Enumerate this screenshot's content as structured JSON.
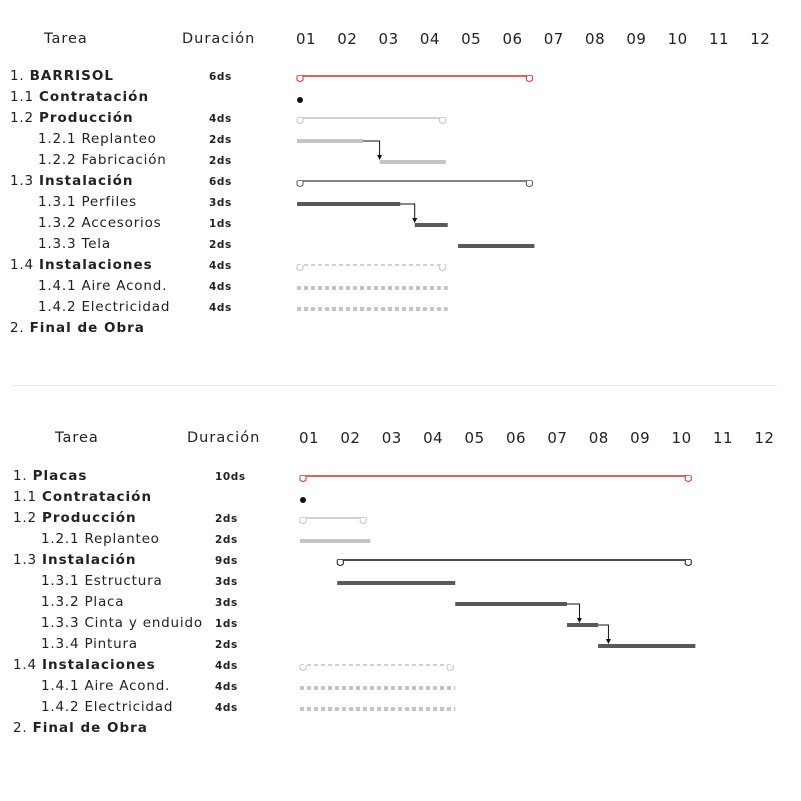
{
  "colors": {
    "red": "#e02a2a",
    "light_gray": "#c4c4c4",
    "dark_gray": "#595959",
    "text": "#222222"
  },
  "charts": [
    {
      "header": {
        "task": "Tarea",
        "duration": "Duración"
      },
      "time_ticks": [
        "01",
        "02",
        "03",
        "04",
        "05",
        "06",
        "07",
        "08",
        "09",
        "10",
        "11",
        "12"
      ],
      "tasks": [
        {
          "num": "1.",
          "name": "BARRISOL",
          "bold": true,
          "indent": 0,
          "dur": "6ds"
        },
        {
          "num": "1.1",
          "name": "Contratación",
          "bold": true,
          "indent": 0,
          "dur": ""
        },
        {
          "num": "1.2",
          "name": "Producción",
          "bold": true,
          "indent": 0,
          "dur": "4ds"
        },
        {
          "num": "1.2.1",
          "name": "Replanteo",
          "bold": false,
          "indent": 1,
          "dur": "2ds"
        },
        {
          "num": "1.2.2",
          "name": "Fabricación",
          "bold": false,
          "indent": 1,
          "dur": "2ds"
        },
        {
          "num": "1.3",
          "name": "Instalación",
          "bold": true,
          "indent": 0,
          "dur": "6ds"
        },
        {
          "num": "1.3.1",
          "name": "Perfiles",
          "bold": false,
          "indent": 1,
          "dur": "3ds"
        },
        {
          "num": "1.3.2",
          "name": "Accesorios",
          "bold": false,
          "indent": 1,
          "dur": "1ds"
        },
        {
          "num": "1.3.3",
          "name": "Tela",
          "bold": false,
          "indent": 1,
          "dur": "2ds"
        },
        {
          "num": "1.4",
          "name": "Instalaciones",
          "bold": true,
          "indent": 0,
          "dur": "4ds"
        },
        {
          "num": "1.4.1",
          "name": "Aire Acond.",
          "bold": false,
          "indent": 1,
          "dur": "4ds"
        },
        {
          "num": "1.4.2",
          "name": "Electricidad",
          "bold": false,
          "indent": 1,
          "dur": "4ds"
        },
        {
          "num": "2.",
          "name": "Final de Obra",
          "bold": true,
          "indent": 0,
          "dur": ""
        }
      ],
      "bars": [
        {
          "row": 0,
          "start": 0.0,
          "end": 5.7,
          "style": "summary",
          "color": "red"
        },
        {
          "row": 1,
          "start": 0.0,
          "end": 0.0,
          "style": "milestone",
          "color": "black"
        },
        {
          "row": 2,
          "start": 0.0,
          "end": 3.6,
          "style": "summary",
          "color": "light_gray"
        },
        {
          "row": 3,
          "start": 0.0,
          "end": 1.6,
          "style": "bar",
          "color": "light_gray"
        },
        {
          "row": 4,
          "start": 2.0,
          "end": 3.6,
          "style": "bar",
          "color": "light_gray"
        },
        {
          "row": 5,
          "start": 0.0,
          "end": 5.7,
          "style": "summary",
          "color": "dark_gray"
        },
        {
          "row": 6,
          "start": 0.0,
          "end": 2.5,
          "style": "bar",
          "color": "dark_gray"
        },
        {
          "row": 7,
          "start": 2.85,
          "end": 3.65,
          "style": "bar",
          "color": "dark_gray"
        },
        {
          "row": 8,
          "start": 3.9,
          "end": 5.75,
          "style": "bar",
          "color": "dark_gray"
        },
        {
          "row": 9,
          "start": 0.0,
          "end": 3.6,
          "style": "summary_dashed",
          "color": "light_gray"
        },
        {
          "row": 10,
          "start": 0.0,
          "end": 3.65,
          "style": "dashed",
          "color": "light_gray"
        },
        {
          "row": 11,
          "start": 0.0,
          "end": 3.65,
          "style": "dashed",
          "color": "light_gray"
        }
      ],
      "links": [
        {
          "from_row": 3,
          "at": 1.6,
          "to_row": 4,
          "to": 2.0
        },
        {
          "from_row": 6,
          "at": 2.5,
          "to_row": 7,
          "to": 2.85
        }
      ]
    },
    {
      "header": {
        "task": "Tarea",
        "duration": "Duración"
      },
      "time_ticks": [
        "01",
        "02",
        "03",
        "04",
        "05",
        "06",
        "07",
        "08",
        "09",
        "10",
        "11",
        "12"
      ],
      "tasks": [
        {
          "num": "1.",
          "name": "Placas",
          "bold": true,
          "indent": 0,
          "dur": "10ds"
        },
        {
          "num": "1.1",
          "name": "Contratación",
          "bold": true,
          "indent": 0,
          "dur": ""
        },
        {
          "num": "1.2",
          "name": "Producción",
          "bold": true,
          "indent": 0,
          "dur": "2ds"
        },
        {
          "num": "1.2.1",
          "name": "Replanteo",
          "bold": false,
          "indent": 1,
          "dur": "2ds"
        },
        {
          "num": "1.3",
          "name": "Instalación",
          "bold": true,
          "indent": 0,
          "dur": "9ds"
        },
        {
          "num": "1.3.1",
          "name": "Estructura",
          "bold": false,
          "indent": 1,
          "dur": "3ds"
        },
        {
          "num": "1.3.2",
          "name": "Placa",
          "bold": false,
          "indent": 1,
          "dur": "3ds"
        },
        {
          "num": "1.3.3",
          "name": "Cinta y enduido",
          "bold": false,
          "indent": 1,
          "dur": "1ds"
        },
        {
          "num": "1.3.4",
          "name": "Pintura",
          "bold": false,
          "indent": 1,
          "dur": "2ds"
        },
        {
          "num": "1.4",
          "name": "Instalaciones",
          "bold": true,
          "indent": 0,
          "dur": "4ds"
        },
        {
          "num": "1.4.1",
          "name": "Aire Acond.",
          "bold": false,
          "indent": 1,
          "dur": "4ds"
        },
        {
          "num": "1.4.2",
          "name": "Electricidad",
          "bold": false,
          "indent": 1,
          "dur": "4ds"
        },
        {
          "num": "2.",
          "name": "Final de Obra",
          "bold": true,
          "indent": 0,
          "dur": ""
        }
      ],
      "bars": [
        {
          "row": 0,
          "start": 0.0,
          "end": 9.45,
          "style": "summary",
          "color": "red"
        },
        {
          "row": 1,
          "start": 0.0,
          "end": 0.0,
          "style": "milestone",
          "color": "black"
        },
        {
          "row": 2,
          "start": 0.0,
          "end": 1.6,
          "style": "summary",
          "color": "light_gray"
        },
        {
          "row": 3,
          "start": 0.0,
          "end": 1.7,
          "style": "bar",
          "color": "light_gray"
        },
        {
          "row": 4,
          "start": 0.9,
          "end": 9.45,
          "style": "summary",
          "color": "black"
        },
        {
          "row": 5,
          "start": 0.9,
          "end": 3.75,
          "style": "bar",
          "color": "dark_gray"
        },
        {
          "row": 6,
          "start": 3.75,
          "end": 6.45,
          "style": "bar",
          "color": "dark_gray"
        },
        {
          "row": 7,
          "start": 6.45,
          "end": 7.2,
          "style": "bar",
          "color": "dark_gray"
        },
        {
          "row": 8,
          "start": 7.2,
          "end": 9.55,
          "style": "bar",
          "color": "dark_gray"
        },
        {
          "row": 9,
          "start": 0.0,
          "end": 3.7,
          "style": "summary_dashed",
          "color": "light_gray"
        },
        {
          "row": 10,
          "start": 0.0,
          "end": 3.75,
          "style": "dashed",
          "color": "light_gray"
        },
        {
          "row": 11,
          "start": 0.0,
          "end": 3.75,
          "style": "dashed",
          "color": "light_gray"
        }
      ],
      "links": [
        {
          "from_row": 6,
          "at": 6.45,
          "to_row": 7,
          "to": 6.75
        },
        {
          "from_row": 7,
          "at": 7.2,
          "to_row": 8,
          "to": 7.45
        }
      ]
    }
  ]
}
